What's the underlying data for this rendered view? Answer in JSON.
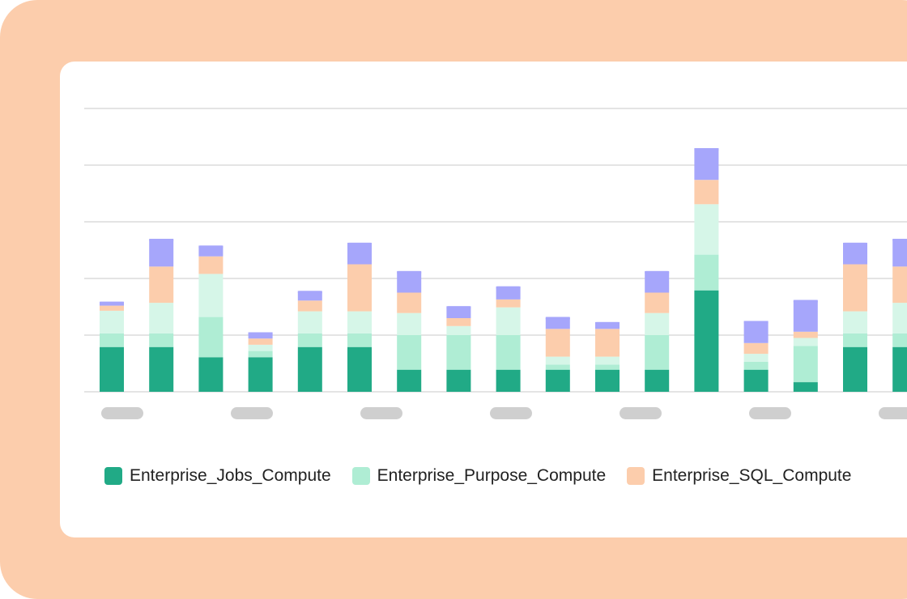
{
  "chart_data": {
    "type": "bar",
    "stacked": true,
    "grid": true,
    "legend_position": "bottom-left",
    "ylim": [
      0,
      5
    ],
    "x_labels_redacted": true,
    "categories": [
      "",
      "",
      "",
      "",
      "",
      "",
      "",
      "",
      "",
      "",
      "",
      "",
      "",
      "",
      "",
      "",
      ""
    ],
    "series": [
      {
        "name": "Enterprise_Jobs_Compute",
        "color": "#21aa86",
        "values": [
          0.79,
          0.79,
          0.61,
          0.61,
          0.79,
          0.79,
          0.39,
          0.39,
          0.39,
          0.39,
          0.39,
          0.39,
          1.79,
          0.39,
          0.17,
          0.79,
          0.79
        ]
      },
      {
        "name": "Enterprise_Purpose_Compute",
        "color": "#afedd4",
        "values": [
          0.24,
          0.24,
          0.71,
          0.11,
          0.24,
          0.24,
          0.61,
          0.61,
          0.61,
          0.09,
          0.09,
          0.61,
          0.63,
          0.14,
          0.64,
          0.24,
          0.24
        ]
      },
      {
        "name": "",
        "color": "#d6f6e8",
        "values": [
          0.4,
          0.54,
          0.76,
          0.11,
          0.39,
          0.39,
          0.39,
          0.16,
          0.49,
          0.14,
          0.14,
          0.39,
          0.89,
          0.14,
          0.14,
          0.39,
          0.54
        ]
      },
      {
        "name": "Enterprise_SQL_Compute",
        "color": "#fccdac",
        "values": [
          0.09,
          0.64,
          0.31,
          0.11,
          0.19,
          0.83,
          0.36,
          0.14,
          0.14,
          0.49,
          0.49,
          0.36,
          0.43,
          0.19,
          0.11,
          0.83,
          0.64
        ]
      },
      {
        "name": "",
        "color": "#a6a6fb",
        "values": [
          0.07,
          0.49,
          0.19,
          0.11,
          0.17,
          0.38,
          0.38,
          0.21,
          0.23,
          0.21,
          0.12,
          0.38,
          0.56,
          0.39,
          0.56,
          0.38,
          0.49
        ]
      }
    ]
  }
}
